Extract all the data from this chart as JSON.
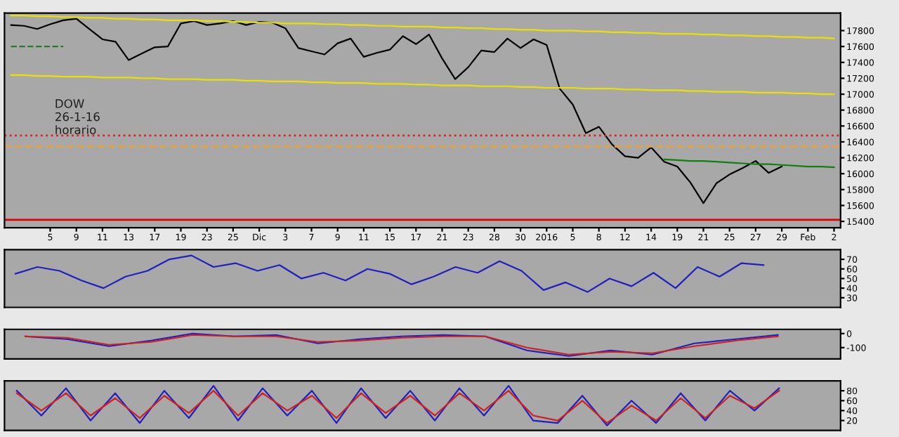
{
  "chart_data": [
    {
      "type": "line",
      "annotations": [
        "DOW\n26-1-16\nhorario"
      ],
      "ylim": [
        15320,
        18020
      ],
      "yticks": [
        15400,
        15600,
        15800,
        16000,
        16200,
        16400,
        16600,
        16800,
        17000,
        17200,
        17400,
        17600,
        17800
      ],
      "categories": [
        null,
        null,
        null,
        "5",
        null,
        "9",
        null,
        "11",
        null,
        "13",
        null,
        "17",
        null,
        "19",
        null,
        "23",
        null,
        "25",
        null,
        "Dic",
        null,
        "3",
        null,
        "7",
        null,
        "9",
        null,
        "11",
        null,
        "15",
        null,
        "17",
        null,
        "21",
        null,
        "23",
        null,
        "28",
        null,
        "30",
        null,
        "2016",
        null,
        "5",
        null,
        "8",
        null,
        "12",
        null,
        "14",
        null,
        "19",
        null,
        "21",
        null,
        "25",
        null,
        "27",
        null,
        "29",
        null,
        "Feb",
        null,
        "2"
      ],
      "ref_lines": [
        {
          "axis": "y",
          "value": 16480,
          "color": "#e02020",
          "line_style": "dotted"
        },
        {
          "axis": "y",
          "value": 16340,
          "color": "#e8a040",
          "line_style": "dashed"
        },
        {
          "axis": "y",
          "value": 15420,
          "color": "#e00000",
          "line_style": "solid"
        }
      ],
      "series": [
        {
          "color": "#000000",
          "values": [
            17870,
            17860,
            17820,
            17880,
            17930,
            17950,
            17820,
            17690,
            17660,
            17430,
            17510,
            17590,
            17600,
            17890,
            17920,
            17870,
            17890,
            17920,
            17870,
            17910,
            17900,
            17830,
            17580,
            17540,
            17500,
            17640,
            17700,
            17470,
            17520,
            17560,
            17730,
            17630,
            17750,
            17450,
            17190,
            17340,
            17550,
            17530,
            17700,
            17580,
            17690,
            17620,
            17070,
            16870,
            16510,
            16590,
            16370,
            16220,
            16200,
            16330,
            16150,
            16090,
            15890,
            15630,
            15880,
            15990,
            16070,
            16160,
            16010,
            16090,
            null,
            null,
            null,
            null
          ]
        },
        {
          "color": "#e8e000",
          "values": [
            17990,
            17990,
            17980,
            17980,
            17970,
            17970,
            17960,
            17960,
            17950,
            17950,
            17940,
            17940,
            17930,
            17930,
            17930,
            17920,
            17920,
            17910,
            17910,
            17900,
            17900,
            17890,
            17890,
            17890,
            17880,
            17880,
            17870,
            17870,
            17860,
            17860,
            17850,
            17850,
            17850,
            17840,
            17840,
            17830,
            17830,
            17820,
            17820,
            17810,
            17810,
            17800,
            17800,
            17800,
            17790,
            17790,
            17780,
            17780,
            17770,
            17770,
            17760,
            17760,
            17760,
            17750,
            17750,
            17740,
            17740,
            17730,
            17730,
            17720,
            17720,
            17710,
            17710,
            17700
          ]
        },
        {
          "color": "#e8e000",
          "values": [
            17240,
            17240,
            17230,
            17230,
            17220,
            17220,
            17220,
            17210,
            17210,
            17210,
            17200,
            17200,
            17190,
            17190,
            17190,
            17180,
            17180,
            17180,
            17170,
            17170,
            17160,
            17160,
            17160,
            17150,
            17150,
            17140,
            17140,
            17140,
            17130,
            17130,
            17130,
            17120,
            17120,
            17110,
            17110,
            17110,
            17100,
            17100,
            17100,
            17090,
            17090,
            17080,
            17080,
            17080,
            17070,
            17070,
            17070,
            17060,
            17060,
            17050,
            17050,
            17050,
            17040,
            17040,
            17030,
            17030,
            17030,
            17020,
            17020,
            17020,
            17010,
            17010,
            17000,
            17000
          ]
        },
        {
          "color": "#108010",
          "values": [
            null,
            null,
            null,
            null,
            null,
            null,
            null,
            null,
            null,
            null,
            null,
            null,
            null,
            null,
            null,
            null,
            null,
            null,
            null,
            null,
            null,
            null,
            null,
            null,
            null,
            null,
            null,
            null,
            null,
            null,
            null,
            null,
            null,
            null,
            null,
            null,
            null,
            null,
            null,
            null,
            null,
            null,
            null,
            null,
            null,
            null,
            null,
            null,
            null,
            null,
            16180,
            16170,
            16160,
            16160,
            16150,
            16140,
            16130,
            16120,
            16120,
            16110,
            16100,
            16090,
            16090,
            16080
          ]
        },
        {
          "color": "#208020",
          "line_style": "dashed",
          "values": [
            17600,
            17600,
            17600,
            17600,
            17600,
            null,
            null,
            null,
            null,
            null,
            null,
            null,
            null,
            null,
            null,
            null,
            null,
            null,
            null,
            null,
            null,
            null,
            null,
            null,
            null,
            null,
            null,
            null,
            null,
            null,
            null,
            null,
            null,
            null,
            null,
            null,
            null,
            null,
            null,
            null,
            null,
            null,
            null,
            null,
            null,
            null,
            null,
            null,
            null,
            null,
            null,
            null,
            null,
            null,
            null,
            null,
            null,
            null,
            null,
            null,
            null,
            null,
            null,
            null
          ]
        }
      ]
    },
    {
      "type": "line",
      "tick_labels": "y",
      "ylim": [
        20,
        80
      ],
      "yticks": [
        30,
        40,
        50,
        60,
        70
      ],
      "categories": [
        null,
        null,
        null,
        null,
        null,
        null,
        null,
        null,
        null,
        null,
        null,
        null,
        null,
        null,
        null,
        null,
        null,
        null,
        null,
        null,
        null,
        null,
        null,
        null,
        null,
        null,
        null,
        null,
        null,
        null,
        null,
        null,
        null,
        null,
        null,
        null,
        null,
        null
      ],
      "series": [
        {
          "color": "#2020c0",
          "values": [
            55,
            62,
            58,
            48,
            40,
            52,
            58,
            70,
            74,
            62,
            66,
            58,
            64,
            50,
            56,
            48,
            60,
            55,
            44,
            52,
            62,
            56,
            68,
            58,
            38,
            46,
            36,
            50,
            42,
            56,
            40,
            62,
            52,
            66,
            64,
            null,
            null,
            null
          ]
        }
      ]
    },
    {
      "type": "line",
      "tick_labels": "y",
      "ylim": [
        -180,
        30
      ],
      "yticks": [
        0,
        -100
      ],
      "categories": [
        null,
        null,
        null,
        null,
        null,
        null,
        null,
        null,
        null,
        null,
        null,
        null,
        null,
        null,
        null,
        null,
        null,
        null,
        null,
        null
      ],
      "series": [
        {
          "color": "#2020c0",
          "values": [
            -20,
            -40,
            -90,
            -50,
            0,
            -20,
            -10,
            -70,
            -40,
            -20,
            -10,
            -20,
            -120,
            -160,
            -120,
            -150,
            -70,
            -40,
            -10,
            null
          ]
        },
        {
          "color": "#d02020",
          "values": [
            -20,
            -30,
            -80,
            -60,
            -10,
            -20,
            -20,
            -60,
            -50,
            -30,
            -20,
            -20,
            -100,
            -150,
            -130,
            -140,
            -90,
            -50,
            -20,
            null
          ]
        }
      ]
    },
    {
      "type": "line",
      "tick_labels": "y",
      "ylim": [
        0,
        100
      ],
      "yticks": [
        20,
        40,
        60,
        80
      ],
      "categories": [
        null,
        null,
        null,
        null,
        null,
        null,
        null,
        null,
        null,
        null,
        null,
        null,
        null,
        null,
        null,
        null,
        null,
        null,
        null,
        null,
        null,
        null,
        null,
        null,
        null,
        null,
        null,
        null,
        null,
        null,
        null,
        null,
        null,
        null
      ],
      "series": [
        {
          "color": "#2020c0",
          "values": [
            80,
            30,
            85,
            20,
            75,
            15,
            80,
            25,
            90,
            20,
            85,
            30,
            80,
            15,
            85,
            25,
            80,
            20,
            85,
            30,
            90,
            20,
            15,
            70,
            10,
            60,
            15,
            75,
            20,
            80,
            40,
            85,
            null,
            null
          ]
        },
        {
          "color": "#d02020",
          "values": [
            75,
            40,
            75,
            30,
            65,
            25,
            70,
            35,
            80,
            30,
            75,
            40,
            70,
            25,
            75,
            35,
            70,
            30,
            75,
            40,
            80,
            30,
            20,
            60,
            15,
            50,
            20,
            65,
            25,
            70,
            45,
            80,
            null,
            null
          ]
        }
      ]
    }
  ]
}
